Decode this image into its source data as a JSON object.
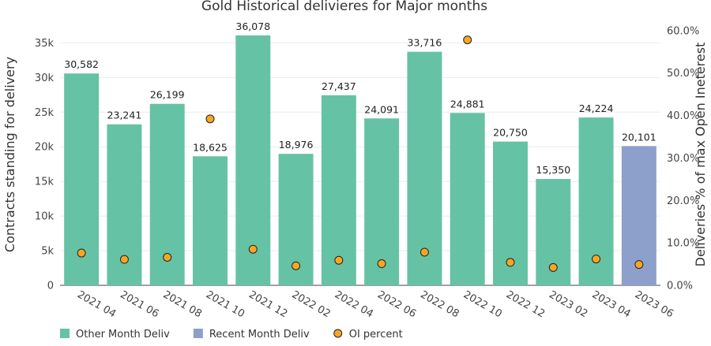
{
  "chart_data": {
    "type": "bar",
    "title": "Gold Historical delivieres for Major months",
    "ylabel": "Contracts standing for delivery",
    "y2label": "Deliveries % of max Open Ineterest",
    "xlabel": "",
    "ylim": [
      0,
      38000
    ],
    "y2lim": [
      0,
      0.62
    ],
    "yticks": [
      0,
      5000,
      10000,
      15000,
      20000,
      25000,
      30000,
      35000
    ],
    "ytick_labels": [
      "0",
      "5k",
      "10k",
      "15k",
      "20k",
      "25k",
      "30k",
      "35k"
    ],
    "y2ticks": [
      0,
      0.1,
      0.2,
      0.3,
      0.4,
      0.5,
      0.6
    ],
    "y2tick_labels": [
      "0.0%",
      "10.0%",
      "20.0%",
      "30.0%",
      "40.0%",
      "50.0%",
      "60.0%"
    ],
    "categories": [
      "2021 04",
      "2021 06",
      "2021 08",
      "2021 10",
      "2021 12",
      "2022 02",
      "2022 04",
      "2022 06",
      "2022 08",
      "2022 10",
      "2022 12",
      "2023 02",
      "2023 04",
      "2023 06"
    ],
    "series": [
      {
        "name": "Other Month Deliv",
        "kind": "bar",
        "color": "#66c2a5",
        "values": [
          30582,
          23241,
          26199,
          18625,
          36078,
          18976,
          27437,
          24091,
          33716,
          24881,
          20750,
          15350,
          24224,
          null
        ],
        "labels": [
          "30,582",
          "23,241",
          "26,199",
          "18,625",
          "36,078",
          "18,976",
          "27,437",
          "24,091",
          "33,716",
          "24,881",
          "20,750",
          "15,350",
          "24,224",
          ""
        ]
      },
      {
        "name": "Recent Month Deliv",
        "kind": "bar",
        "color": "#8da0cb",
        "values": [
          null,
          null,
          null,
          null,
          null,
          null,
          null,
          null,
          null,
          null,
          null,
          null,
          null,
          20101
        ],
        "labels": [
          "",
          "",
          "",
          "",
          "",
          "",
          "",
          "",
          "",
          "",
          "",
          "",
          "",
          "20,101"
        ]
      },
      {
        "name": "OI percent",
        "kind": "scatter",
        "axis": "y2",
        "color": "#f5a623",
        "values": [
          0.076,
          0.061,
          0.066,
          0.392,
          0.085,
          0.046,
          0.059,
          0.051,
          0.078,
          0.578,
          0.054,
          0.042,
          0.062,
          0.049
        ]
      }
    ],
    "legend_position": "bottom-left"
  }
}
